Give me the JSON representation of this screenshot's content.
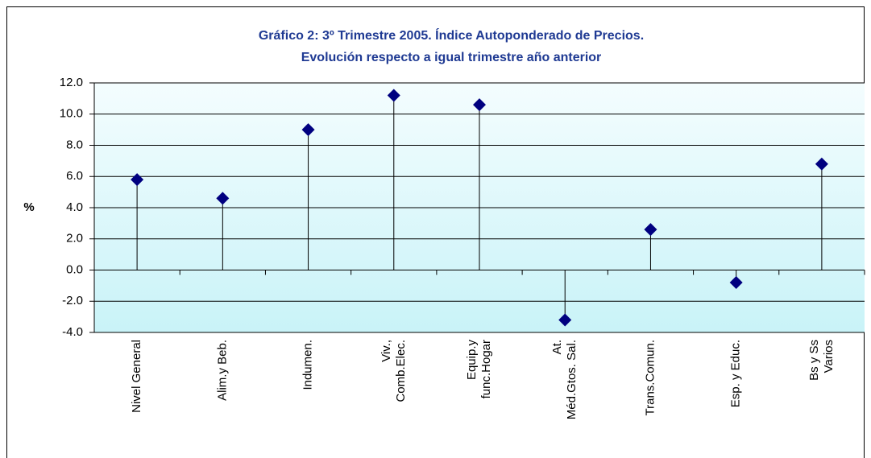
{
  "chart_data": {
    "type": "stem",
    "title": [
      "Gráfico 2: 3º Trimestre 2005. Índice Autoponderado de Precios.",
      "Evolución respecto a igual trimestre año anterior"
    ],
    "y_label": "%",
    "categories": [
      "Nivel General",
      "Alim.y Beb.",
      "Indumen.",
      "Viv.,\nComb.Elec.",
      "Equip.y\nfunc.Hogar",
      "At.\nMéd.Gtos. Sal.",
      "Trans.Comun.",
      "Esp. y Educ.",
      "Bs y Ss\nVarios"
    ],
    "values": [
      5.8,
      4.6,
      9.0,
      11.2,
      10.6,
      -3.2,
      2.6,
      -0.8,
      6.8
    ],
    "color": "#000080",
    "ylim": [
      -4,
      12
    ],
    "yticks": [
      {
        "value": -4,
        "label": "-4.0"
      },
      {
        "value": -2,
        "label": "-2.0"
      },
      {
        "value": 0,
        "label": "0.0"
      },
      {
        "value": 2,
        "label": "2.0"
      },
      {
        "value": 4,
        "label": "4.0"
      },
      {
        "value": 6,
        "label": "6.0"
      },
      {
        "value": 8,
        "label": "8.0"
      },
      {
        "value": 10,
        "label": "10.0"
      },
      {
        "value": 12,
        "label": "12.0"
      }
    ],
    "grid": true
  }
}
